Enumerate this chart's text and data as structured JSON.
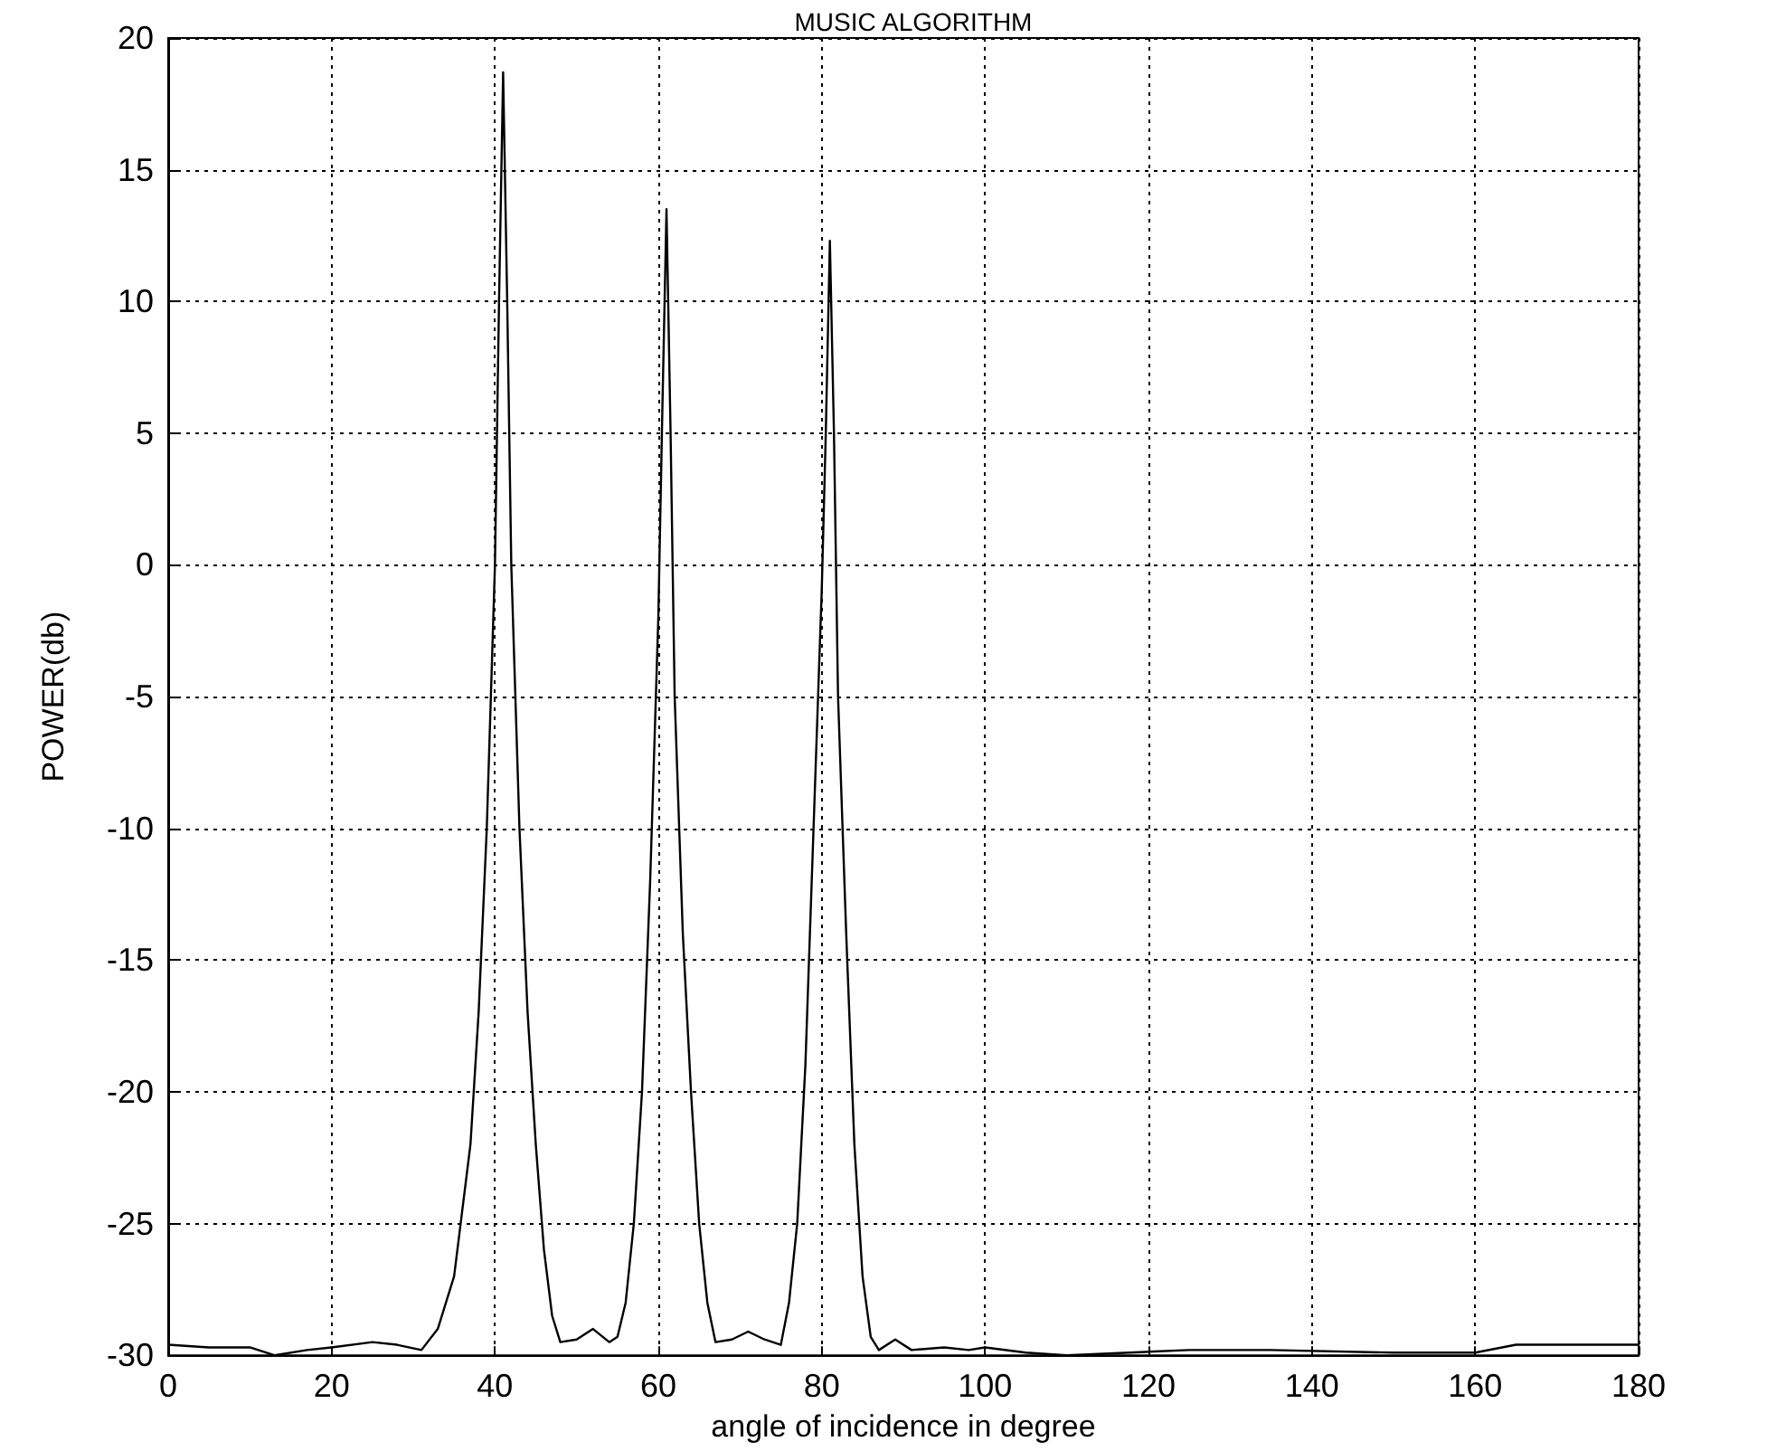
{
  "chart_data": {
    "type": "line",
    "title": "MUSIC ALGORITHM",
    "xlabel": "angle of incidence in degree",
    "ylabel": "POWER(db)",
    "series": [
      {
        "color": "#000000",
        "x": [
          0,
          5,
          10,
          13,
          17,
          20,
          25,
          28,
          31,
          33,
          35,
          37,
          38,
          39,
          40,
          40.5,
          41,
          41.5,
          42,
          43,
          44,
          45,
          46,
          47,
          48,
          50,
          52,
          54,
          55,
          56,
          57,
          58,
          59,
          60,
          60.5,
          61,
          61.5,
          62,
          63,
          64,
          65,
          66,
          67,
          69,
          71,
          73,
          75,
          76,
          77,
          78,
          79,
          80,
          80.5,
          81,
          81.5,
          82,
          83,
          84,
          85,
          86,
          87,
          89,
          91,
          95,
          98,
          100,
          105,
          110,
          125,
          135,
          150,
          160,
          165,
          170,
          180
        ],
        "values": [
          -29.6,
          -29.7,
          -29.7,
          -30,
          -29.8,
          -29.7,
          -29.5,
          -29.6,
          -29.8,
          -29,
          -27,
          -22,
          -17,
          -10,
          0,
          10,
          18.7,
          10,
          0,
          -10,
          -17,
          -22,
          -26,
          -28.5,
          -29.5,
          -29.4,
          -29,
          -29.5,
          -29.3,
          -28,
          -25,
          -20,
          -12,
          -2,
          6,
          13.5,
          5,
          -5,
          -14,
          -20,
          -25,
          -28,
          -29.5,
          -29.4,
          -29.1,
          -29.4,
          -29.6,
          -28,
          -25,
          -19,
          -10,
          -1,
          5,
          12.3,
          5,
          -5,
          -14,
          -22,
          -27,
          -29.3,
          -29.8,
          -29.4,
          -29.8,
          -29.7,
          -29.8,
          -29.7,
          -29.9,
          -30,
          -29.8,
          -29.8,
          -29.9,
          -29.9,
          -29.6,
          -29.6,
          -29.6
        ]
      }
    ],
    "xlim": [
      0,
      180
    ],
    "xticks": [
      0,
      20,
      40,
      60,
      80,
      100,
      120,
      140,
      160,
      180
    ],
    "ylim": [
      -30,
      20
    ],
    "yticks": [
      -30,
      -25,
      -20,
      -15,
      -10,
      -5,
      0,
      5,
      10,
      15,
      20
    ],
    "grid": true,
    "marker": "none",
    "line_style": "solid"
  }
}
